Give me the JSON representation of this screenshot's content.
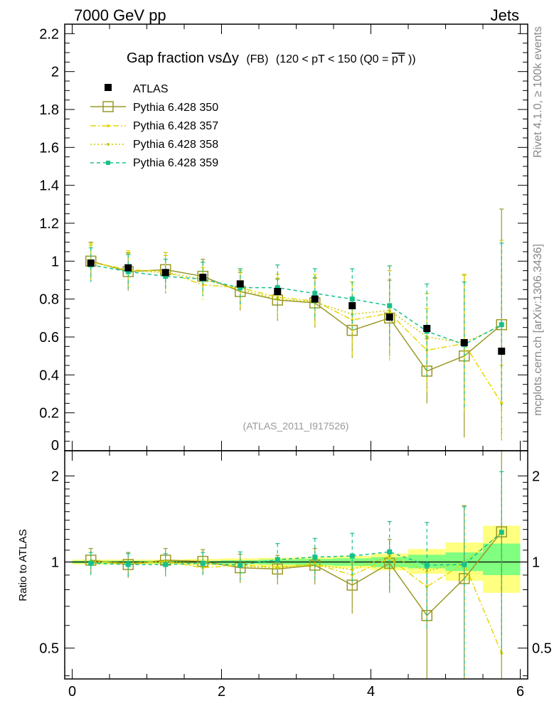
{
  "header": {
    "left": "7000 GeV pp",
    "right": "Jets"
  },
  "side_labels": {
    "rivet": "Rivet 4.1.0, ≥ 100k events",
    "mcplots": "mcplots.cern.ch [arXiv:1306.3436]"
  },
  "colors": {
    "atlas": "#000000",
    "py350": "#999926",
    "py357": "#e5d700",
    "py358": "#cccc00",
    "py359": "#18c08a",
    "band_yellow": "#ffff80",
    "band_green": "#80ff80",
    "analysis": "#999999"
  },
  "chart_data": [
    {
      "type": "scatter",
      "panel": "main",
      "title_main": "Gap fraction vsΔy",
      "title_small": "(FB)",
      "title_rest": "(120 < pT < 150 (Q0 =",
      "title_pt": "pT",
      "title_end": "))",
      "analysis_label": "(ATLAS_2011_I917526)",
      "xlim": [
        -0.1,
        6.1
      ],
      "ylim": [
        0,
        2.25
      ],
      "yticks": [
        {
          "value": 0,
          "label": "0"
        },
        {
          "value": 0.2,
          "label": "0.2"
        },
        {
          "value": 0.4,
          "label": "0.4"
        },
        {
          "value": 0.6,
          "label": "0.6"
        },
        {
          "value": 0.8,
          "label": "0.8"
        },
        {
          "value": 1.0,
          "label": "1"
        },
        {
          "value": 1.2,
          "label": "1.2"
        },
        {
          "value": 1.4,
          "label": "1.4"
        },
        {
          "value": 1.6,
          "label": "1.6"
        },
        {
          "value": 1.8,
          "label": "1.8"
        },
        {
          "value": 2.0,
          "label": "2"
        },
        {
          "value": 2.2,
          "label": "2.2"
        }
      ],
      "x": [
        0.25,
        0.75,
        1.25,
        1.75,
        2.25,
        2.75,
        3.25,
        3.75,
        4.25,
        4.75,
        5.25,
        5.75
      ],
      "series": [
        {
          "name": "ATLAS",
          "key": "atlas",
          "values": [
            0.99,
            0.965,
            0.94,
            0.915,
            0.88,
            0.84,
            0.8,
            0.765,
            0.705,
            0.645,
            0.57,
            0.525
          ],
          "err": [
            0.01,
            0.01,
            0.01,
            0.01,
            0.01,
            0.01,
            0.01,
            0.01,
            0.01,
            0.01,
            0.01,
            0.01
          ]
        },
        {
          "name": "Pythia 6.428 350",
          "key": "py350",
          "values": [
            1.0,
            0.945,
            0.955,
            0.92,
            0.84,
            0.795,
            0.78,
            0.635,
            0.7,
            0.42,
            0.5,
            0.665
          ],
          "err": [
            0.1,
            0.1,
            0.09,
            0.09,
            0.1,
            0.11,
            0.13,
            0.145,
            0.2,
            0.17,
            0.43,
            0.61
          ]
        },
        {
          "name": "Pythia 6.428 357",
          "key": "py357",
          "values": [
            0.995,
            0.955,
            0.945,
            0.875,
            0.86,
            0.81,
            0.79,
            0.69,
            0.725,
            0.53,
            0.565,
            0.25
          ],
          "err": [
            0.1,
            0.1,
            0.1,
            0.09,
            0.1,
            0.12,
            0.14,
            0.2,
            0.25,
            0.22,
            0.36,
            0.2
          ]
        },
        {
          "name": "Pythia 6.428 358",
          "key": "py358",
          "values": [
            0.995,
            0.95,
            0.94,
            0.905,
            0.85,
            0.8,
            0.785,
            0.72,
            0.74,
            0.6,
            0.57,
            0.66
          ],
          "err": [
            0.09,
            0.09,
            0.09,
            0.09,
            0.1,
            0.11,
            0.13,
            0.17,
            0.21,
            0.23,
            0.36,
            0.45
          ]
        },
        {
          "name": "Pythia 6.428 359",
          "key": "py359",
          "values": [
            0.98,
            0.945,
            0.92,
            0.905,
            0.86,
            0.86,
            0.83,
            0.8,
            0.765,
            0.63,
            0.56,
            0.665
          ],
          "err": [
            0.09,
            0.09,
            0.09,
            0.09,
            0.1,
            0.12,
            0.13,
            0.16,
            0.21,
            0.25,
            0.33,
            0.43
          ]
        }
      ]
    },
    {
      "type": "scatter",
      "panel": "ratio",
      "ylabel": "Ratio to ATLAS",
      "xlabel": "",
      "yscale": "log",
      "ylim": [
        0.39,
        2.45
      ],
      "yticks": [
        {
          "value": 0.5,
          "label": "0.5"
        },
        {
          "value": 1,
          "label": "1"
        },
        {
          "value": 2,
          "label": "2"
        }
      ],
      "xticks": [
        {
          "value": 0,
          "label": "0"
        },
        {
          "value": 2,
          "label": "2"
        },
        {
          "value": 4,
          "label": "4"
        },
        {
          "value": 6,
          "label": "6"
        }
      ],
      "band_yellow": [
        [
          0.98,
          1.02
        ],
        [
          0.98,
          1.02
        ],
        [
          0.98,
          1.02
        ],
        [
          0.975,
          1.025
        ],
        [
          0.975,
          1.03
        ],
        [
          0.965,
          1.035
        ],
        [
          0.96,
          1.04
        ],
        [
          0.95,
          1.05
        ],
        [
          0.935,
          1.07
        ],
        [
          0.91,
          1.11
        ],
        [
          0.86,
          1.17
        ],
        [
          0.78,
          1.34
        ]
      ],
      "band_green": [
        [
          0.99,
          1.01
        ],
        [
          0.99,
          1.01
        ],
        [
          0.99,
          1.01
        ],
        [
          0.99,
          1.01
        ],
        [
          0.985,
          1.015
        ],
        [
          0.98,
          1.02
        ],
        [
          0.975,
          1.025
        ],
        [
          0.97,
          1.03
        ],
        [
          0.96,
          1.04
        ],
        [
          0.95,
          1.06
        ],
        [
          0.93,
          1.08
        ],
        [
          0.9,
          1.16
        ]
      ],
      "series": [
        {
          "key": "py350",
          "values": [
            1.015,
            0.98,
            1.015,
            1.005,
            0.955,
            0.945,
            0.975,
            0.83,
            0.99,
            0.65,
            0.875,
            1.275
          ],
          "err": [
            0.1,
            0.1,
            0.1,
            0.1,
            0.11,
            0.11,
            0.14,
            0.17,
            0.21,
            0.3,
            0.7,
            1.2
          ]
        },
        {
          "key": "py357",
          "values": [
            1.005,
            0.99,
            1.005,
            0.955,
            0.975,
            0.96,
            0.985,
            0.9,
            1.03,
            0.82,
            0.99,
            0.48
          ]
        },
        {
          "key": "py358",
          "values": [
            1.005,
            0.985,
            1.0,
            0.99,
            0.965,
            0.955,
            0.98,
            0.94,
            1.05,
            0.93,
            1.0,
            1.26
          ]
        },
        {
          "key": "py359",
          "values": [
            0.99,
            0.98,
            0.98,
            0.99,
            0.975,
            1.02,
            1.04,
            1.05,
            1.085,
            0.975,
            0.98,
            1.27
          ],
          "err": [
            0.09,
            0.09,
            0.09,
            0.09,
            0.11,
            0.14,
            0.17,
            0.21,
            0.3,
            0.4,
            0.58,
            0.8
          ]
        }
      ]
    }
  ]
}
